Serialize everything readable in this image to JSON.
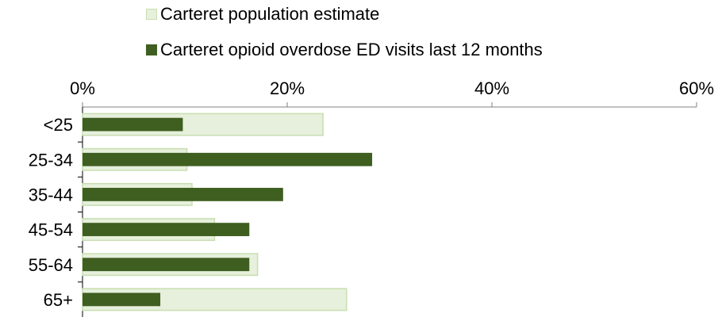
{
  "chart_data": {
    "type": "bar",
    "orientation": "horizontal",
    "categories": [
      "<25",
      "25-34",
      "35-44",
      "45-54",
      "55-64",
      "65+"
    ],
    "series": [
      {
        "name": "Carteret population estimate",
        "values": [
          23.5,
          10.2,
          10.7,
          12.9,
          17.1,
          25.8
        ],
        "fill": "#e6f0dc",
        "stroke": "#c8deb0"
      },
      {
        "name": "Carteret opioid overdose ED visits last 12 months",
        "values": [
          9.8,
          28.3,
          19.6,
          16.3,
          16.3,
          7.6
        ],
        "fill": "#3f5f21",
        "stroke": "#3f5f21"
      }
    ],
    "xlim": [
      0,
      60
    ],
    "xticks": [
      "0%",
      "20%",
      "40%",
      "60%"
    ],
    "xtick_values": [
      0,
      20,
      40,
      60
    ],
    "legend_position": "top",
    "grid": false
  }
}
